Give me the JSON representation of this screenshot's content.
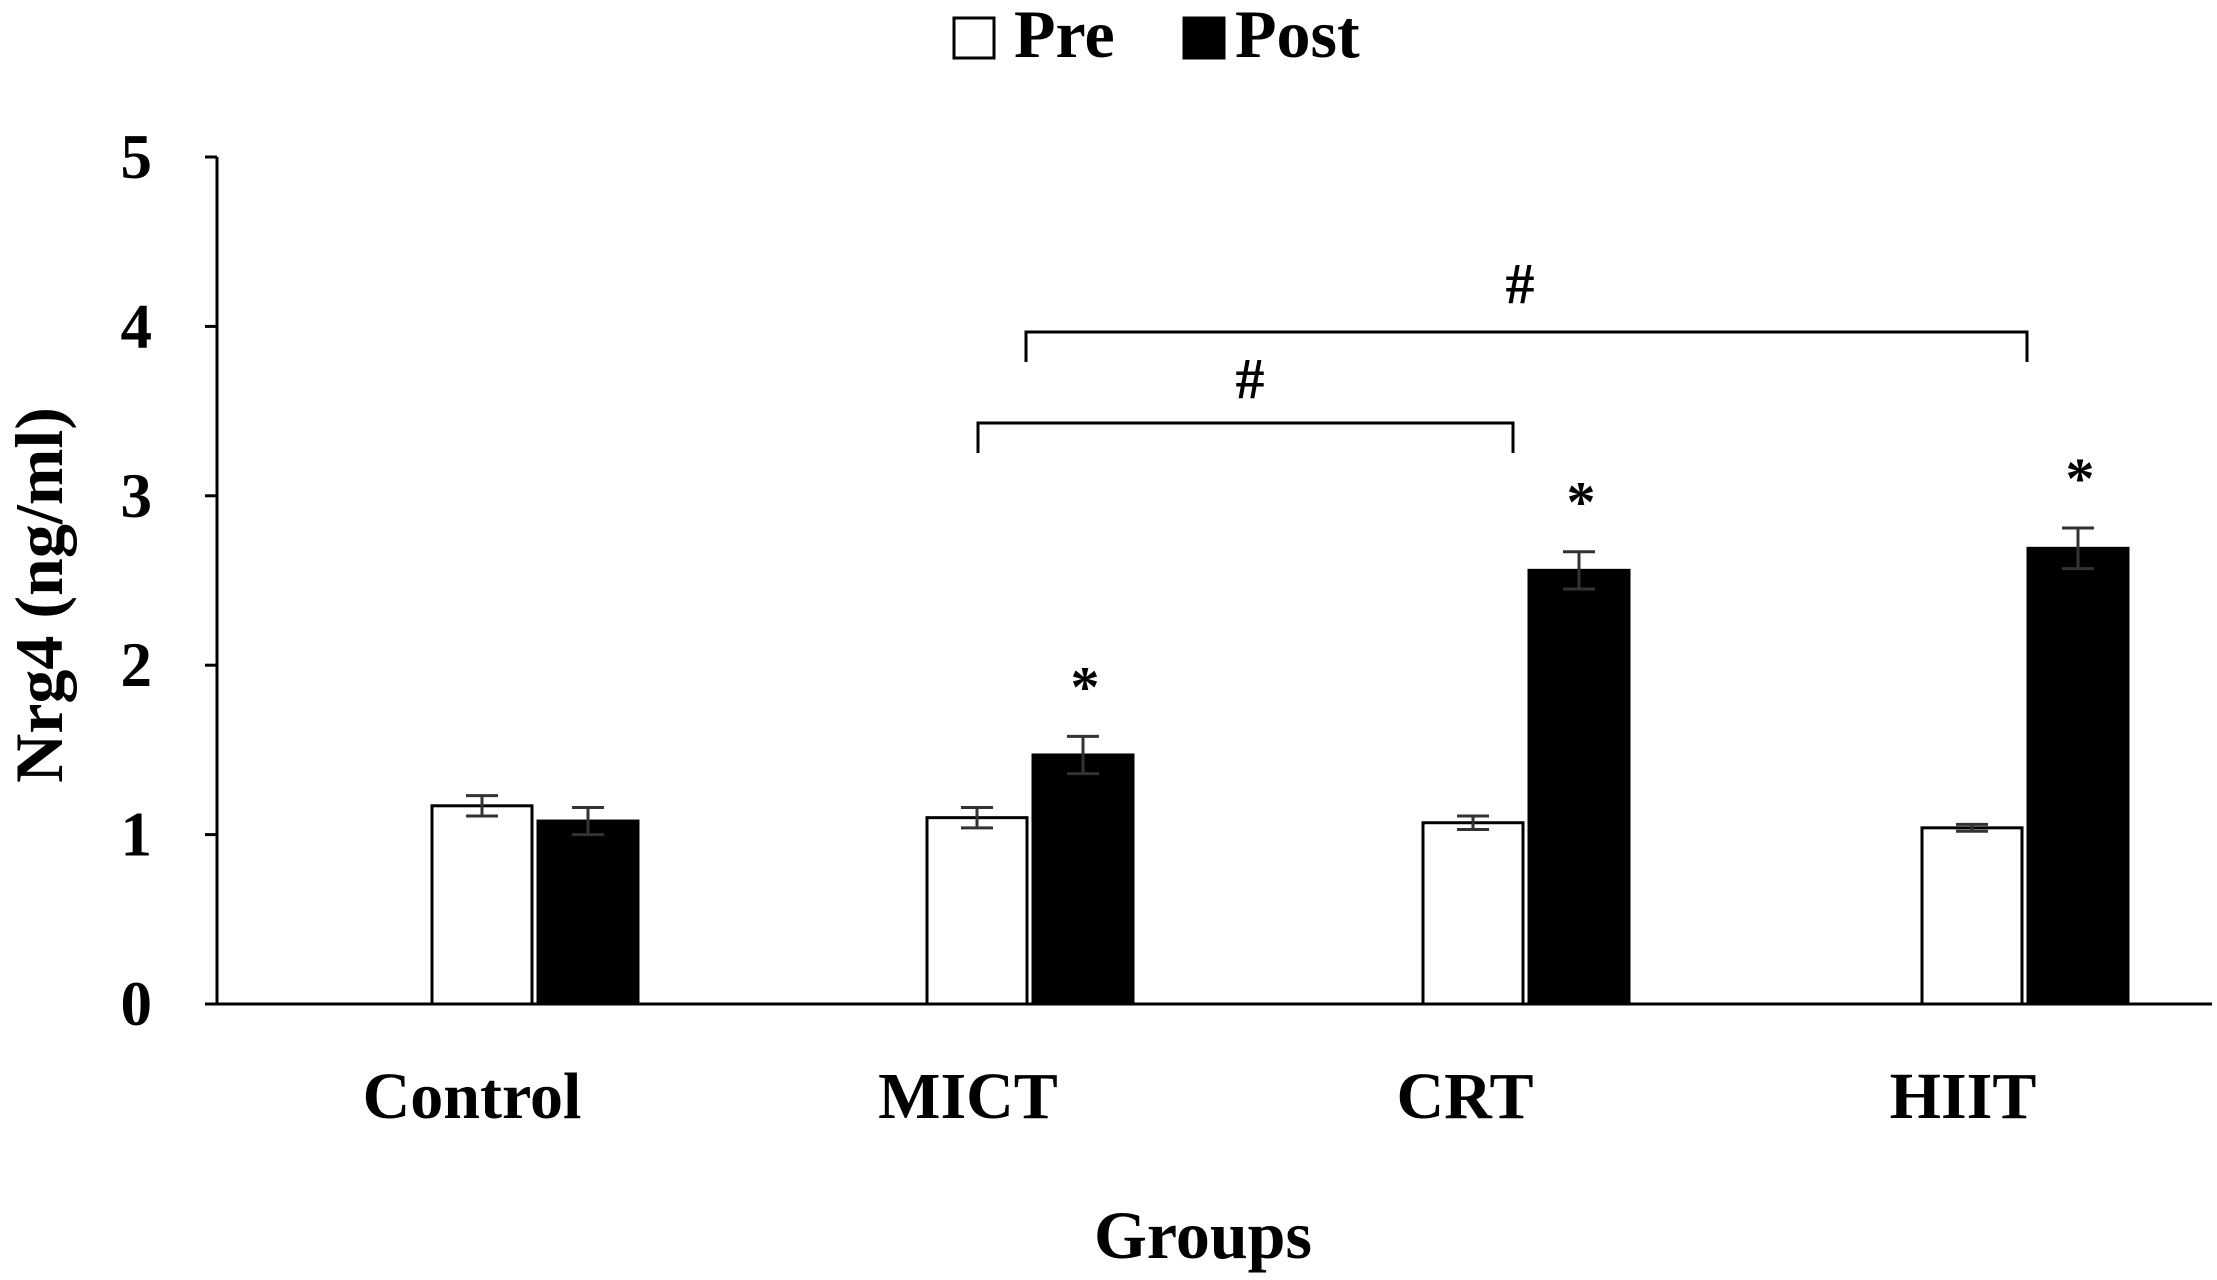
{
  "chart_data": {
    "type": "bar",
    "title": "",
    "xlabel": "Groups",
    "ylabel": "Nrg4 (ng/ml)",
    "ylim": [
      0,
      5
    ],
    "yticks": [
      "0",
      "1",
      "2",
      "3",
      "4",
      "5"
    ],
    "categories": [
      "Control",
      "MICT",
      "CRT",
      "HIIT"
    ],
    "legend_position": "top-center",
    "series": [
      {
        "name": "Pre",
        "values": [
          1.17,
          1.1,
          1.07,
          1.04
        ],
        "errors": [
          0.06,
          0.06,
          0.04,
          0.02
        ],
        "fill": "#ffffff",
        "stroke": "#000000"
      },
      {
        "name": "Post",
        "values": [
          1.08,
          1.47,
          2.56,
          2.69
        ],
        "errors": [
          0.08,
          0.11,
          0.11,
          0.12
        ],
        "fill": "#000000",
        "stroke": "#000000"
      }
    ],
    "annotations": {
      "asterisks": [
        {
          "text": "*",
          "category_index": 1,
          "series_index": 1
        },
        {
          "text": "*",
          "category_index": 2,
          "series_index": 1
        },
        {
          "text": "*",
          "category_index": 3,
          "series_index": 1
        }
      ],
      "brackets": [
        {
          "text": "#",
          "from_category": 1,
          "to_category": 2
        },
        {
          "text": "#",
          "from_category": 1,
          "to_category": 3
        }
      ]
    },
    "colors": {
      "axis": "#000000",
      "pre_fill": "#ffffff",
      "post_fill": "#000000"
    }
  }
}
